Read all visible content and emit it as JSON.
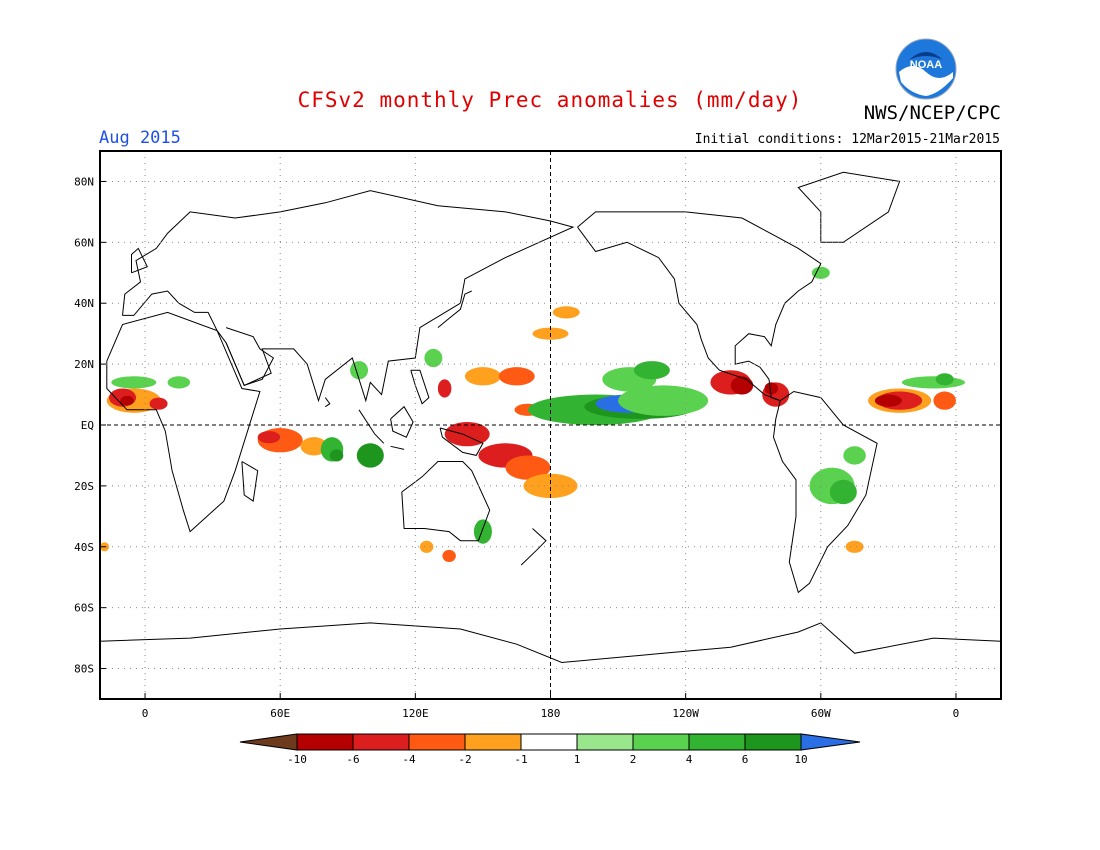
{
  "header": {
    "title": "CFSv2 monthly Prec anomalies (mm/day)",
    "month": "Aug 2015",
    "agency": "NWS/NCEP/CPC",
    "initial_conditions": "Initial conditions: 12Mar2015-21Mar2015"
  },
  "logo": {
    "text": "NOAA"
  },
  "map": {
    "lat_labels": [
      "80N",
      "60N",
      "40N",
      "20N",
      "EQ",
      "20S",
      "40S",
      "60S",
      "80S"
    ],
    "lon_labels": [
      "0",
      "60E",
      "120E",
      "180",
      "120W",
      "60W",
      "0"
    ],
    "colors": {
      "frame": "#000000",
      "grid": "#777777",
      "coast": "#000000"
    }
  },
  "colorbar": {
    "labels": [
      "-10",
      "-6",
      "-4",
      "-2",
      "-1",
      "1",
      "2",
      "4",
      "6",
      "10"
    ],
    "colors": [
      "#6e3a1e",
      "#b40000",
      "#dc1e1e",
      "#ff5a14",
      "#ffa01e",
      "#ffffff",
      "#9ae68c",
      "#5ad250",
      "#32b432",
      "#1e961e",
      "#2a6ee6"
    ]
  }
}
